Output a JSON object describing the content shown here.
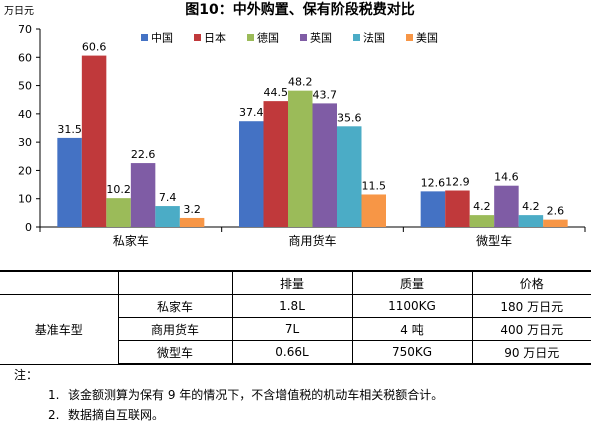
{
  "chart_data": {
    "type": "bar",
    "title": "图10：中外购置、保有阶段税费对比",
    "ylabel": "万日元",
    "ylim": [
      0,
      70
    ],
    "yticks": [
      0,
      10,
      20,
      30,
      40,
      50,
      60,
      70
    ],
    "categories": [
      "私家车",
      "商用货车",
      "微型车"
    ],
    "legend_position": "top",
    "grid": false,
    "series": [
      {
        "name": "中国",
        "color": "#4472C4",
        "values": [
          31.5,
          37.4,
          12.6
        ]
      },
      {
        "name": "日本",
        "color": "#C0393B",
        "values": [
          60.6,
          44.5,
          12.9
        ]
      },
      {
        "name": "德国",
        "color": "#9BBB59",
        "values": [
          10.2,
          48.2,
          4.2
        ]
      },
      {
        "name": "英国",
        "color": "#7F5CA5",
        "values": [
          22.6,
          43.7,
          14.6
        ]
      },
      {
        "name": "法国",
        "color": "#4BACC6",
        "values": [
          7.4,
          35.6,
          4.2
        ]
      },
      {
        "name": "美国",
        "color": "#F79646",
        "values": [
          3.2,
          11.5,
          2.6
        ]
      }
    ]
  },
  "table": {
    "headers": [
      "",
      "",
      "排量",
      "质量",
      "价格"
    ],
    "group_label": "基准车型",
    "rows": [
      {
        "type": "私家车",
        "displacement": "1.8L",
        "mass": "1100KG",
        "price": "180 万日元"
      },
      {
        "type": "商用货车",
        "displacement": "7L",
        "mass": "4 吨",
        "price": "400 万日元"
      },
      {
        "type": "微型车",
        "displacement": "0.66L",
        "mass": "750KG",
        "price": "90 万日元"
      }
    ]
  },
  "notes": {
    "title": "注：",
    "items": [
      {
        "num": "1.",
        "text": "该金额测算为保有 9 年的情况下，不含增值税的机动车相关税额合计。"
      },
      {
        "num": "2.",
        "text": "数据摘自互联网。"
      }
    ]
  }
}
